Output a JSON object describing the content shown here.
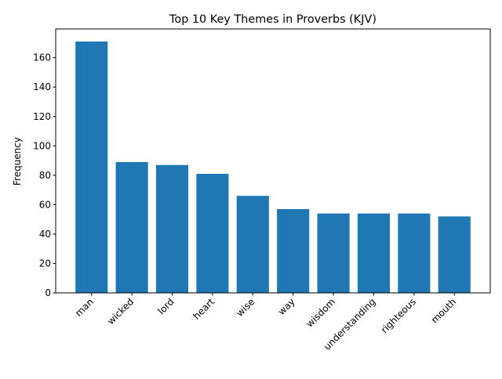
{
  "chart_data": {
    "type": "bar",
    "title": "Top 10 Key Themes in Proverbs (KJV)",
    "xlabel": "",
    "ylabel": "Frequency",
    "categories": [
      "man",
      "wicked",
      "lord",
      "heart",
      "wise",
      "way",
      "wisdom",
      "understanding",
      "righteous",
      "mouth"
    ],
    "values": [
      171,
      89,
      87,
      81,
      66,
      57,
      54,
      54,
      54,
      52
    ],
    "ylim": [
      0,
      179.55
    ],
    "yticks": [
      0,
      20,
      40,
      60,
      80,
      100,
      120,
      140,
      160
    ],
    "grid": false,
    "bar_color": "#1f77b4"
  }
}
